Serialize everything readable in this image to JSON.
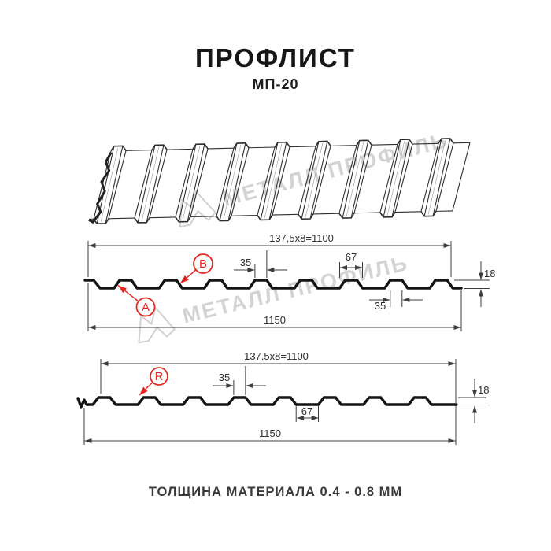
{
  "header": {
    "title": "ПРОФЛИСТ",
    "subtitle": "МП-20"
  },
  "watermark": {
    "text": "МЕТАЛЛ ПРОФИЛЬ"
  },
  "diagram1": {
    "dim_top": "137,5x8=1100",
    "dim_35_top": "35",
    "dim_67": "67",
    "dim_18": "18",
    "dim_35_bottom": "35",
    "dim_1150": "1150",
    "label_a": "A",
    "label_b": "B"
  },
  "diagram2": {
    "dim_top": "137.5x8=1100",
    "dim_35": "35",
    "dim_67": "67",
    "dim_18": "18",
    "dim_1150": "1150",
    "label_r": "R"
  },
  "footer": {
    "text": "ТОЛЩИНА МАТЕРИАЛА 0.4 - 0.8 ММ"
  },
  "colors": {
    "red": "#e52620",
    "dim_line": "#3d3d3d",
    "dim_text": "#2e2e2e",
    "profile": "#141414",
    "sheet_line": "#2e2e2e",
    "watermark": "#c9c9c9"
  }
}
